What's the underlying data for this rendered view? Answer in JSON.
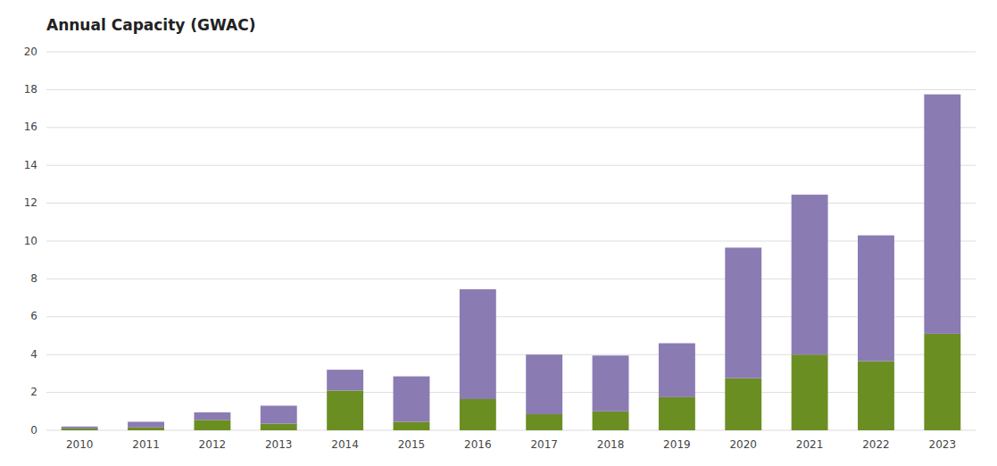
{
  "chart_data": {
    "type": "bar",
    "title": "Annual Capacity (GWAC)",
    "categories": [
      "2010",
      "2011",
      "2012",
      "2013",
      "2014",
      "2015",
      "2016",
      "2017",
      "2018",
      "2019",
      "2020",
      "2021",
      "2022",
      "2023"
    ],
    "series": [
      {
        "color": "#6b8e23",
        "values": [
          0.1,
          0.15,
          0.55,
          0.35,
          2.1,
          0.45,
          1.65,
          0.85,
          1.0,
          1.75,
          2.75,
          4.0,
          3.65,
          5.1
        ]
      },
      {
        "color": "#8b7bb3",
        "values": [
          0.1,
          0.3,
          0.4,
          0.95,
          1.1,
          2.4,
          5.8,
          3.15,
          2.95,
          2.85,
          6.9,
          8.45,
          6.65,
          12.65
        ]
      }
    ],
    "stacked": true,
    "ylim": [
      0,
      20
    ],
    "yticks": [
      0,
      2,
      4,
      6,
      8,
      10,
      12,
      14,
      16,
      18,
      20
    ],
    "grid": true
  }
}
